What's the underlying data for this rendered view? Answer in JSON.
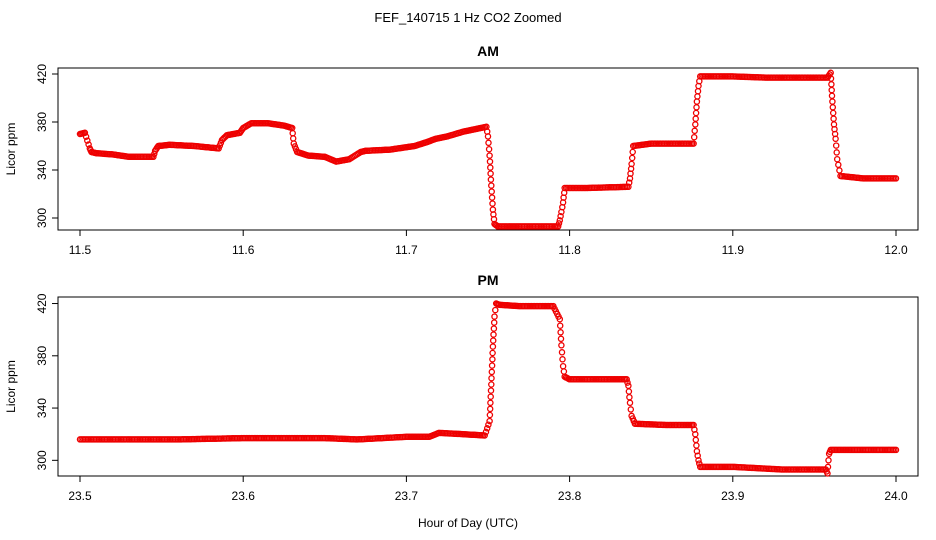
{
  "figure": {
    "suptitle": "FEF_140715  1 Hz CO2 Zoomed",
    "xlabel": "Hour of Day (UTC)",
    "marker_color": "#ee0000"
  },
  "chart_data": [
    {
      "type": "scatter",
      "title": "AM",
      "xlabel": "",
      "ylabel": "Licor ppm",
      "xlim": [
        11.5,
        12.0
      ],
      "ylim": [
        290,
        425
      ],
      "xticks": [
        11.5,
        11.6,
        11.7,
        11.8,
        11.9,
        12.0
      ],
      "xtick_labels": [
        "11.5",
        "11.6",
        "11.7",
        "11.8",
        "11.9",
        "12.0"
      ],
      "yticks": [
        300,
        340,
        380,
        420
      ],
      "ytick_labels": [
        "300",
        "340",
        "380",
        "420"
      ],
      "grid": false,
      "series": [
        {
          "marker": "open-circle",
          "x": [
            11.5,
            11.503,
            11.506,
            11.507,
            11.51,
            11.52,
            11.53,
            11.545,
            11.546,
            11.548,
            11.555,
            11.57,
            11.585,
            11.587,
            11.59,
            11.598,
            11.6,
            11.605,
            11.615,
            11.625,
            11.63,
            11.631,
            11.633,
            11.64,
            11.65,
            11.657,
            11.665,
            11.672,
            11.675,
            11.69,
            11.7,
            11.705,
            11.712,
            11.718,
            11.725,
            11.735,
            11.742,
            11.749,
            11.75,
            11.751,
            11.752,
            11.753,
            11.754,
            11.756,
            11.77,
            11.793,
            11.794,
            11.795,
            11.796,
            11.797,
            11.81,
            11.836,
            11.837,
            11.838,
            11.839,
            11.85,
            11.876,
            11.877,
            11.878,
            11.879,
            11.88,
            11.9,
            11.92,
            11.94,
            11.958,
            11.96,
            11.961,
            11.962,
            11.963,
            11.964,
            11.966,
            11.98,
            12.0
          ],
          "y": [
            370,
            371,
            358,
            355,
            354,
            353,
            351,
            351,
            356,
            360,
            361,
            360,
            358,
            365,
            369,
            371,
            375,
            379,
            379,
            377,
            375,
            362,
            355,
            352,
            351,
            347,
            349,
            355,
            356,
            357,
            359,
            360,
            363,
            366,
            368,
            372,
            374,
            376,
            368,
            352,
            327,
            307,
            295,
            293,
            293,
            293,
            298,
            305,
            313,
            325,
            325,
            326,
            333,
            345,
            360,
            362,
            362,
            378,
            397,
            410,
            418,
            418,
            417,
            417,
            417,
            421,
            397,
            378,
            366,
            349,
            335,
            333,
            333
          ]
        }
      ]
    },
    {
      "type": "scatter",
      "title": "PM",
      "xlabel": "",
      "ylabel": "Licor ppm",
      "xlim": [
        23.5,
        24.0
      ],
      "ylim": [
        288,
        425
      ],
      "xticks": [
        23.5,
        23.6,
        23.7,
        23.8,
        23.9,
        24.0
      ],
      "xtick_labels": [
        "23.5",
        "23.6",
        "23.7",
        "23.8",
        "23.9",
        "24.0"
      ],
      "yticks": [
        300,
        340,
        380,
        420
      ],
      "ytick_labels": [
        "300",
        "340",
        "380",
        "420"
      ],
      "grid": false,
      "series": [
        {
          "marker": "open-circle",
          "x": [
            23.5,
            23.53,
            23.56,
            23.6,
            23.65,
            23.67,
            23.7,
            23.714,
            23.72,
            23.735,
            23.748,
            23.751,
            23.752,
            23.753,
            23.754,
            23.755,
            23.757,
            23.77,
            23.79,
            23.794,
            23.795,
            23.796,
            23.797,
            23.8,
            23.82,
            23.835,
            23.836,
            23.837,
            23.838,
            23.84,
            23.86,
            23.876,
            23.877,
            23.878,
            23.879,
            23.88,
            23.9,
            23.93,
            23.957,
            23.958,
            23.959,
            23.96,
            23.975,
            24.0
          ],
          "y": [
            316,
            316,
            316,
            317,
            317,
            316,
            318,
            318,
            321,
            320,
            319,
            330,
            358,
            387,
            410,
            420,
            419,
            418,
            418,
            408,
            388,
            372,
            364,
            362,
            362,
            362,
            357,
            344,
            334,
            328,
            327,
            327,
            320,
            307,
            300,
            295,
            295,
            293,
            293,
            290,
            305,
            308,
            308,
            308
          ]
        }
      ]
    }
  ]
}
